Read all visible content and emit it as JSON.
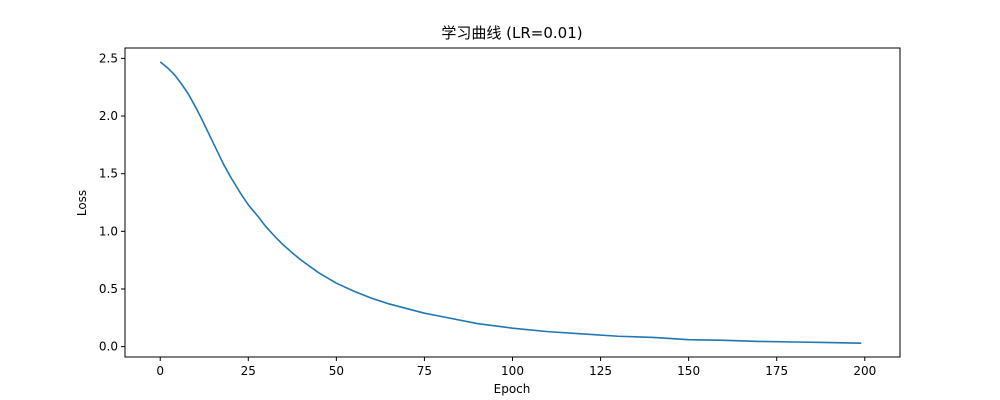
{
  "chart_data": {
    "type": "line",
    "title": "学习曲线 (LR=0.01)",
    "xlabel": "Epoch",
    "ylabel": "Loss",
    "xlim": [
      -10,
      210
    ],
    "ylim": [
      -0.09,
      2.59
    ],
    "xticks": [
      0,
      25,
      50,
      75,
      100,
      125,
      150,
      175,
      200
    ],
    "xtick_labels": [
      "0",
      "25",
      "50",
      "75",
      "100",
      "125",
      "150",
      "175",
      "200"
    ],
    "yticks": [
      0.0,
      0.5,
      1.0,
      1.5,
      2.0,
      2.5
    ],
    "ytick_labels": [
      "0.0",
      "0.5",
      "1.0",
      "1.5",
      "2.0",
      "2.5"
    ],
    "grid": false,
    "line_color": "#1f77b4",
    "series": [
      {
        "x": [
          0,
          2,
          4,
          6,
          8,
          10,
          12,
          15,
          18,
          20,
          23,
          25,
          28,
          30,
          33,
          35,
          38,
          40,
          45,
          50,
          55,
          60,
          65,
          70,
          75,
          80,
          90,
          100,
          110,
          120,
          130,
          140,
          150,
          160,
          170,
          180,
          190,
          199
        ],
        "y": [
          2.47,
          2.42,
          2.36,
          2.28,
          2.19,
          2.08,
          1.96,
          1.77,
          1.58,
          1.47,
          1.32,
          1.23,
          1.12,
          1.04,
          0.94,
          0.88,
          0.8,
          0.75,
          0.64,
          0.55,
          0.48,
          0.42,
          0.37,
          0.33,
          0.29,
          0.26,
          0.2,
          0.16,
          0.13,
          0.11,
          0.09,
          0.08,
          0.06,
          0.055,
          0.045,
          0.04,
          0.035,
          0.03
        ]
      }
    ]
  }
}
